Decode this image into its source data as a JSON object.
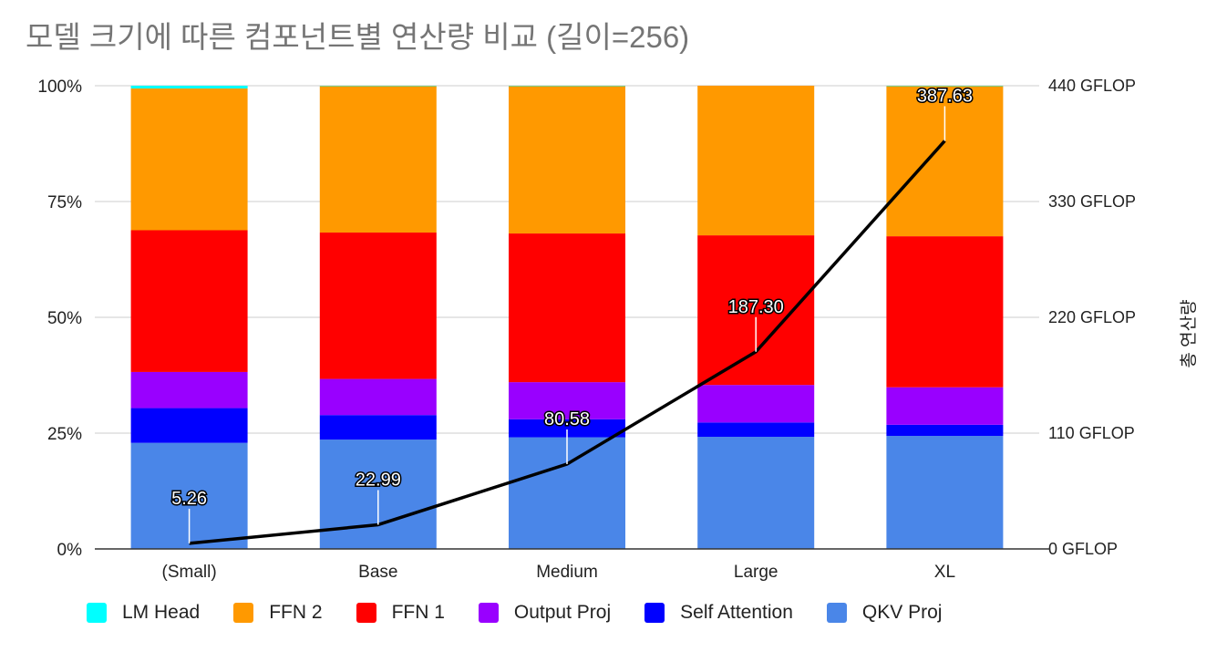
{
  "chart_data": {
    "type": "bar",
    "stacked": "percent",
    "title": "모델 크기에 따른 컴포넌트별 연산량 비교 (길이=256)",
    "categories": [
      "(Small)",
      "Base",
      "Medium",
      "Large",
      "XL"
    ],
    "y_left": {
      "ticks": [
        "0%",
        "25%",
        "50%",
        "75%",
        "100%"
      ],
      "range": [
        0,
        100
      ]
    },
    "y_right": {
      "label": "총 연산량",
      "ticks": [
        "0 GFLOP",
        "110 GFLOP",
        "220 GFLOP",
        "330 GFLOP",
        "440 GFLOP"
      ],
      "range": [
        0,
        440
      ]
    },
    "series": [
      {
        "name": "QKV Proj",
        "color": "#4a86e8",
        "values": [
          22.9,
          23.6,
          24.1,
          24.2,
          24.4
        ]
      },
      {
        "name": "Self Attention",
        "color": "#0000ff",
        "values": [
          7.5,
          5.3,
          3.9,
          3.1,
          2.4
        ]
      },
      {
        "name": "Output Proj",
        "color": "#9900ff",
        "values": [
          7.8,
          7.8,
          8.0,
          8.1,
          8.1
        ]
      },
      {
        "name": "FFN 1",
        "color": "#ff0000",
        "values": [
          30.6,
          31.6,
          32.1,
          32.3,
          32.6
        ]
      },
      {
        "name": "FFN 2",
        "color": "#ff9900",
        "values": [
          30.6,
          31.6,
          31.8,
          32.3,
          32.4
        ]
      },
      {
        "name": "LM Head",
        "color": "#00ffff",
        "values": [
          0.6,
          0.1,
          0.1,
          0.0,
          0.1
        ]
      }
    ],
    "line": {
      "name": "총 연산량",
      "color": "#000000",
      "values": [
        5.26,
        22.99,
        80.58,
        187.3,
        387.63
      ],
      "labels": [
        "5.26",
        "22.99",
        "80.58",
        "187.30",
        "387.63"
      ]
    },
    "legend": [
      "LM Head",
      "FFN 2",
      "FFN 1",
      "Output Proj",
      "Self Attention",
      "QKV Proj"
    ]
  }
}
